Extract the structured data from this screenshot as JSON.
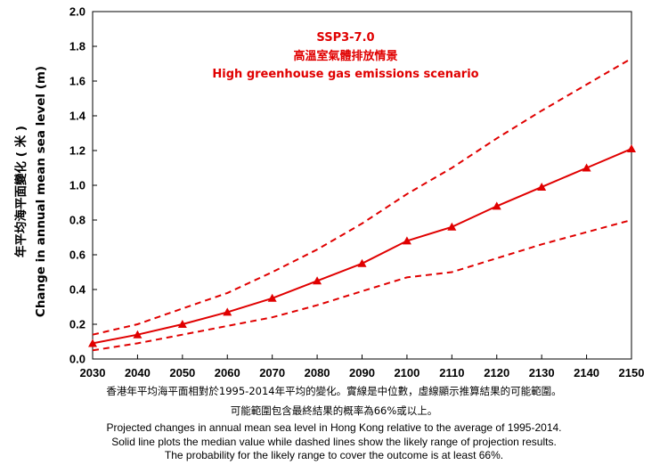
{
  "chart_data": {
    "type": "line",
    "title_lines": [
      "SSP3-7.0",
      "高溫室氣體排放情景",
      "High greenhouse gas emissions scenario"
    ],
    "ylabel_zh": "年平均海平面變化 ( 米 )",
    "ylabel_en": "Change in annual mean sea level (m)",
    "xlabel": "",
    "x": [
      2030,
      2040,
      2050,
      2060,
      2070,
      2080,
      2090,
      2100,
      2110,
      2120,
      2130,
      2140,
      2150
    ],
    "xlim": [
      2030,
      2150
    ],
    "ylim": [
      0,
      2.0
    ],
    "y_ticks": [
      "0.0",
      "0.2",
      "0.4",
      "0.6",
      "0.8",
      "1.0",
      "1.2",
      "1.4",
      "1.6",
      "1.8",
      "2.0"
    ],
    "grid": false,
    "series": [
      {
        "role": "median",
        "style": "solid",
        "marker": "triangle",
        "color": "#e00000",
        "values": [
          0.09,
          0.14,
          0.2,
          0.27,
          0.35,
          0.45,
          0.55,
          0.68,
          0.76,
          0.88,
          0.99,
          1.1,
          1.21
        ]
      },
      {
        "role": "upper likely range",
        "style": "dashed",
        "color": "#e00000",
        "values": [
          0.14,
          0.2,
          0.29,
          0.38,
          0.5,
          0.63,
          0.78,
          0.95,
          1.1,
          1.27,
          1.43,
          1.58,
          1.73
        ]
      },
      {
        "role": "lower likely range",
        "style": "dashed",
        "color": "#e00000",
        "values": [
          0.05,
          0.09,
          0.14,
          0.19,
          0.24,
          0.31,
          0.39,
          0.47,
          0.5,
          0.58,
          0.66,
          0.73,
          0.8
        ]
      }
    ]
  },
  "captions": {
    "zh_line1": "香港年平均海平面相對於1995-2014年平均的變化。實線是中位數，虛線顯示推算結果的可能範圍。",
    "zh_line2": "可能範圍包含最終結果的概率為66%或以上。",
    "en_line1": "Projected changes in annual  mean sea level in Hong Kong relative to the average of 1995-2014.",
    "en_line2": "Solid line plots the median value while dashed lines show the likely range of projection results.",
    "en_line3": "The probability for the likely range to cover the outcome is at least 66%."
  }
}
